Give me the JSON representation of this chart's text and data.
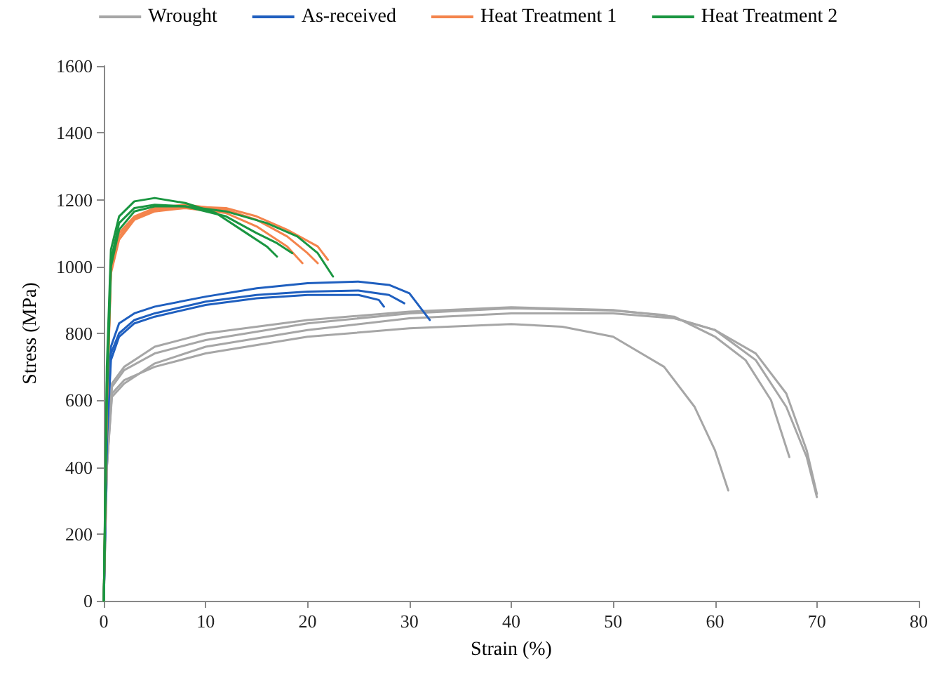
{
  "chart_data": {
    "type": "line",
    "xlabel": "Strain (%)",
    "ylabel": "Stress (MPa)",
    "xlim": [
      0,
      80
    ],
    "xticks": [
      0,
      10,
      20,
      30,
      40,
      50,
      60,
      70,
      80
    ],
    "ylim": [
      0,
      1600
    ],
    "yticks": [
      0,
      200,
      400,
      600,
      800,
      1000,
      1200,
      1400,
      1600
    ],
    "grid": false,
    "legend": "top",
    "marker": "none",
    "line_style": "solid",
    "series": [
      {
        "name": "Wrought",
        "color": "#a6a6a6",
        "x": [
          0,
          0.3,
          0.8,
          2,
          5,
          10,
          20,
          30,
          40,
          45,
          50,
          55,
          58,
          60,
          61.3
        ],
        "values": [
          0,
          400,
          620,
          660,
          700,
          740,
          790,
          815,
          828,
          820,
          790,
          700,
          580,
          450,
          330
        ]
      },
      {
        "color": "#a6a6a6",
        "x": [
          0,
          0.3,
          0.8,
          2,
          5,
          10,
          20,
          30,
          40,
          50,
          55,
          60,
          64,
          67,
          69,
          70
        ],
        "values": [
          0,
          400,
          640,
          690,
          740,
          780,
          830,
          860,
          875,
          868,
          855,
          810,
          720,
          580,
          430,
          310
        ]
      },
      {
        "color": "#a6a6a6",
        "x": [
          0,
          0.3,
          0.8,
          2,
          5,
          10,
          20,
          30,
          40,
          50,
          56,
          60,
          63,
          65.5,
          67.3
        ],
        "values": [
          0,
          420,
          650,
          700,
          760,
          800,
          840,
          865,
          878,
          870,
          850,
          790,
          720,
          600,
          430
        ]
      },
      {
        "color": "#a6a6a6",
        "x": [
          0,
          0.3,
          0.8,
          2,
          5,
          10,
          20,
          30,
          40,
          50,
          56,
          60,
          64,
          67,
          69,
          70
        ],
        "values": [
          0,
          400,
          610,
          650,
          710,
          760,
          810,
          845,
          860,
          860,
          845,
          810,
          740,
          620,
          450,
          320
        ]
      },
      {
        "name": "As-received",
        "color": "#1f5fbf",
        "x": [
          0,
          0.3,
          0.7,
          1.5,
          3,
          5,
          10,
          15,
          20,
          25,
          28,
          30,
          32
        ],
        "values": [
          0,
          500,
          760,
          830,
          860,
          880,
          910,
          935,
          950,
          955,
          945,
          920,
          840
        ]
      },
      {
        "color": "#1f5fbf",
        "x": [
          0,
          0.3,
          0.7,
          1.5,
          3,
          5,
          10,
          15,
          20,
          25,
          28,
          29.5
        ],
        "values": [
          0,
          500,
          740,
          800,
          840,
          860,
          895,
          915,
          925,
          928,
          915,
          890
        ]
      },
      {
        "color": "#1f5fbf",
        "x": [
          0,
          0.3,
          0.7,
          1.5,
          3,
          5,
          10,
          15,
          20,
          25,
          27,
          27.5
        ],
        "values": [
          0,
          480,
          720,
          790,
          830,
          850,
          885,
          905,
          915,
          915,
          900,
          880
        ]
      },
      {
        "name": "Heat Treatment 1",
        "color": "#f4844c",
        "x": [
          0,
          0.3,
          0.7,
          1.5,
          3,
          5,
          8,
          12,
          15,
          18,
          20,
          21
        ],
        "values": [
          0,
          600,
          1000,
          1100,
          1150,
          1175,
          1185,
          1170,
          1140,
          1090,
          1040,
          1010
        ]
      },
      {
        "color": "#f4844c",
        "x": [
          0,
          0.3,
          0.7,
          1.5,
          3,
          5,
          8,
          12,
          15,
          18,
          19.5
        ],
        "values": [
          0,
          580,
          980,
          1080,
          1140,
          1165,
          1175,
          1160,
          1120,
          1060,
          1010
        ]
      },
      {
        "color": "#f4844c",
        "x": [
          0,
          0.3,
          0.7,
          1.5,
          3,
          5,
          8,
          12,
          15,
          18,
          21,
          22
        ],
        "values": [
          0,
          590,
          990,
          1090,
          1145,
          1170,
          1180,
          1175,
          1150,
          1110,
          1060,
          1020
        ]
      },
      {
        "name": "Heat Treatment 2",
        "color": "#1a9641",
        "x": [
          0,
          0.3,
          0.7,
          1.5,
          3,
          5,
          8,
          11,
          14,
          16,
          17
        ],
        "values": [
          0,
          700,
          1050,
          1150,
          1195,
          1205,
          1190,
          1160,
          1100,
          1060,
          1030
        ]
      },
      {
        "color": "#1a9641",
        "x": [
          0,
          0.3,
          0.7,
          1.5,
          3,
          5,
          8,
          12,
          15,
          17,
          18.5
        ],
        "values": [
          0,
          650,
          1020,
          1130,
          1175,
          1185,
          1180,
          1150,
          1100,
          1070,
          1040
        ]
      },
      {
        "color": "#1a9641",
        "x": [
          0,
          0.3,
          0.7,
          1.5,
          3,
          5,
          8,
          12,
          16,
          19,
          21,
          22.5
        ],
        "values": [
          0,
          600,
          1000,
          1110,
          1165,
          1180,
          1180,
          1165,
          1130,
          1090,
          1040,
          970
        ]
      }
    ]
  }
}
